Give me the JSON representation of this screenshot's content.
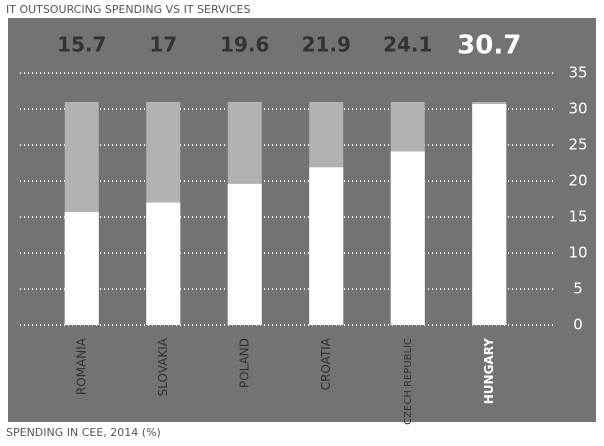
{
  "chart_data": {
    "type": "bar",
    "title": "IT OUTSOURCING SPENDING VS IT SERVICES",
    "footnote": "SPENDING IN CEE, 2014 (%)",
    "categories": [
      "ROMANIA",
      "SLOVAKIA",
      "POLAND",
      "CROATIA",
      "CZECH REPUBLIC",
      "HUNGARY"
    ],
    "values": [
      15.7,
      17,
      19.6,
      21.9,
      24.1,
      30.7
    ],
    "highlight": "HUNGARY",
    "color": "#ffffff",
    "track_color": "#b2b2b2",
    "background": "#737373",
    "ylim": [
      0,
      35
    ],
    "yticks": [
      0,
      5,
      10,
      15,
      20,
      25,
      30,
      35
    ],
    "grid": true
  }
}
